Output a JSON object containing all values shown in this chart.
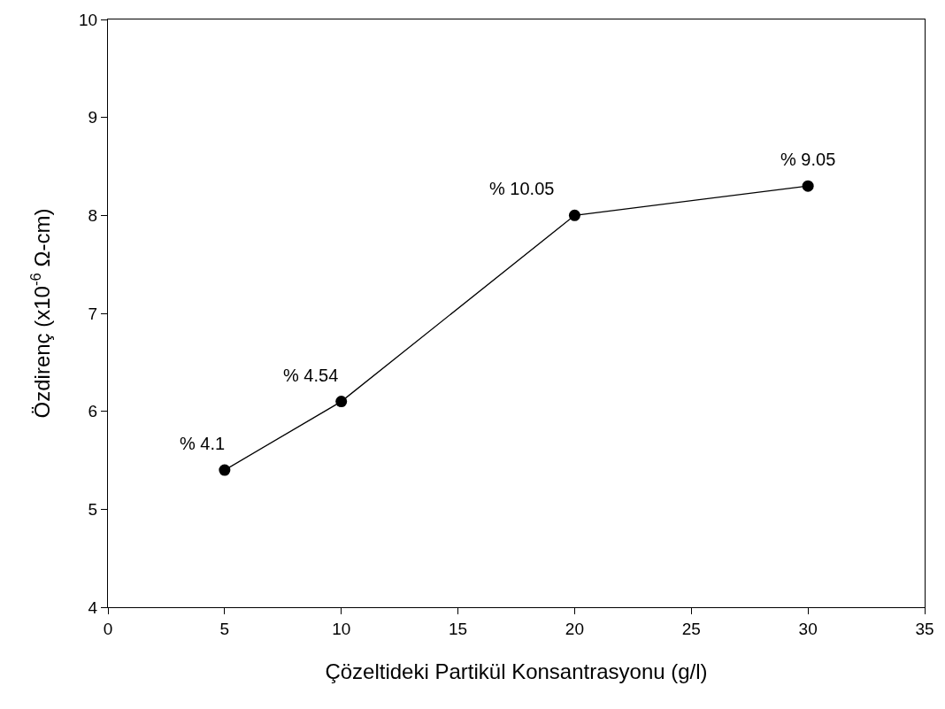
{
  "chart_data": {
    "type": "line",
    "xlabel": "Çözeltideki Partikül Konsantrasyonu (g/l)",
    "ylabel": "Özdirenç (x10$^{-6}$ Ω-cm)",
    "x": [
      5,
      10,
      20,
      30
    ],
    "series": [
      {
        "color": "#000000",
        "values": [
          5.4,
          6.1,
          8.0,
          8.3
        ]
      }
    ],
    "marker": "circle",
    "line_style": "solid",
    "xlim": [
      0,
      35
    ],
    "xticks": [
      0,
      5,
      10,
      15,
      20,
      25,
      30,
      35
    ],
    "ylim": [
      4,
      10
    ],
    "yticks": [
      4,
      5,
      6,
      7,
      8,
      9,
      10
    ],
    "annotations": [
      {
        "text": "% 4.1",
        "x": 5,
        "y": 5.4
      },
      {
        "text": "% 4.54",
        "x": 10,
        "y": 6.1
      },
      {
        "text": "% 10.05",
        "x": 20,
        "y": 8.0
      },
      {
        "text": "% 9.05",
        "x": 30,
        "y": 8.3
      }
    ]
  }
}
